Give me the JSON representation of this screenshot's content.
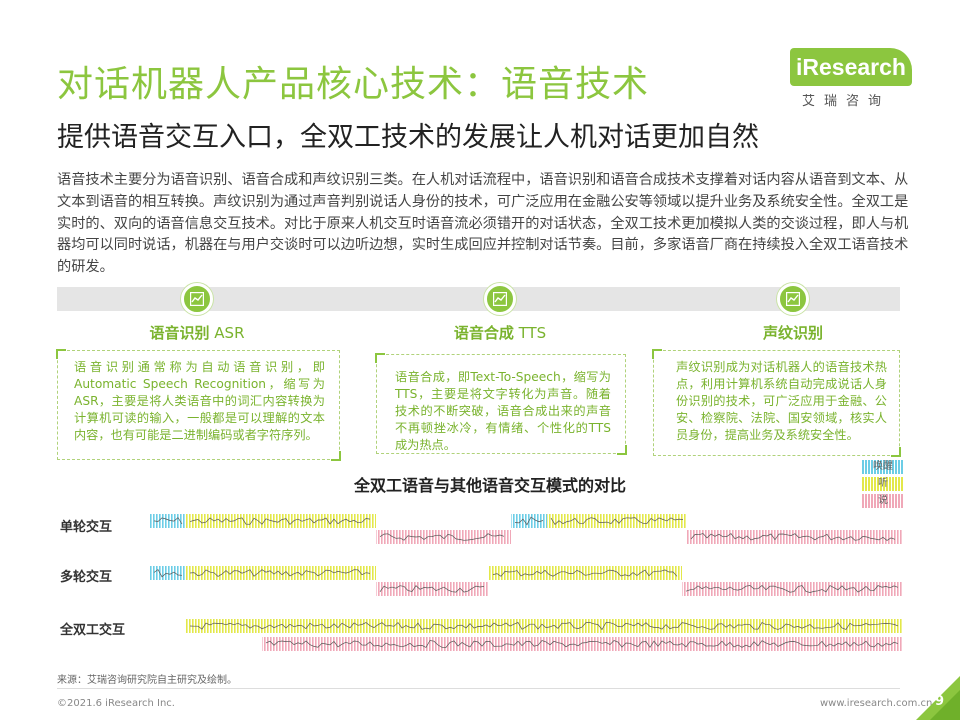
{
  "header": {
    "title": "对话机器人产品核心技术：语音技术",
    "subtitle": "提供语音交互入口，全双工技术的发展让人机对话更加自然"
  },
  "logo": {
    "text": "iResearch",
    "cn": "艾瑞咨询",
    "color": "#8cc63f"
  },
  "intro": "语音技术主要分为语音识别、语音合成和声纹识别三类。在人机对话流程中，语音识别和语音合成技术支撑着对话内容从语音到文本、从文本到语音的相互转换。声纹识别为通过声音判别说话人身份的技术，可广泛应用在金融公安等领域以提升业务及系统安全性。全双工是实时的、双向的语音信息交互技术。对比于原来人机交互时语音流必须错开的对话状态，全双工技术更加模拟人类的交谈过程，即人与机器均可以同时说话，机器在与用户交谈时可以边听边想，实时生成回应并控制对话节奏。目前，多家语音厂商在持续投入全双工语音技术的研发。",
  "techs": [
    {
      "title_cn": "语音识别",
      "title_en": " ASR",
      "icon": "chart-icon",
      "text": "语音识别通常称为自动语音识别，即Automatic Speech Recognition，缩写为ASR，主要是将人类语音中的词汇内容转换为计算机可读的输入，一般都是可以理解的文本内容，也有可能是二进制编码或者字符序列。"
    },
    {
      "title_cn": "语音合成",
      "title_en": " TTS",
      "icon": "chart-icon",
      "text": "语音合成，即Text-To-Speech，缩写为TTS，主要是将文字转化为声音。随着技术的不断突破，语音合成出来的声音不再顿挫冰冷，有情绪、个性化的TTS成为热点。"
    },
    {
      "title_cn": "声纹识别",
      "title_en": "",
      "icon": "chart-icon",
      "text": "声纹识别成为对话机器人的语音技术热点，利用计算机系统自动完成说话人身份识别的技术，可广泛应用于金融、公安、检察院、法院、国安领域，核实人员身份，提高业务及系统安全性。"
    }
  ],
  "chart": {
    "title": "全双工语音与其他语音交互模式的对比",
    "legend": [
      {
        "label": "唤醒",
        "color": "#6ccde6"
      },
      {
        "label": "听",
        "color": "#e3e84a"
      },
      {
        "label": "说",
        "color": "#f0a8b8"
      }
    ],
    "rows": [
      {
        "label": "单轮交互"
      },
      {
        "label": "多轮交互"
      },
      {
        "label": "全双工交互"
      }
    ]
  },
  "footer": {
    "source": "来源：艾瑞咨询研究院自主研究及绘制。",
    "copyright": "©2021.6 iResearch Inc.",
    "website": "www.iresearch.com.cn",
    "page": "9"
  }
}
